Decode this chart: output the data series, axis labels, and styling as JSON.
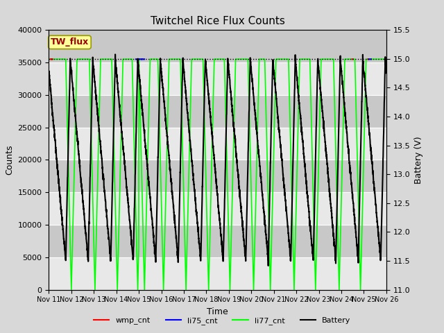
{
  "title": "Twitchel Rice Flux Counts",
  "xlabel": "Time",
  "ylabel_left": "Counts",
  "ylabel_right": "Battery (V)",
  "ylim_left": [
    0,
    40000
  ],
  "ylim_right": [
    11.0,
    15.5
  ],
  "xlim": [
    0,
    15
  ],
  "xtick_labels": [
    "Nov 11",
    "Nov 12",
    "Nov 13",
    "Nov 14",
    "Nov 15",
    "Nov 16",
    "Nov 17",
    "Nov 18",
    "Nov 19",
    "Nov 20",
    "Nov 21",
    "Nov 22",
    "Nov 23",
    "Nov 24",
    "Nov 25",
    "Nov 26"
  ],
  "fig_bg_color": "#d8d8d8",
  "plot_bg_color": "#c8c8c8",
  "white_band_color": "#e8e8e8",
  "label_box_text": "TW_flux",
  "label_box_bg": "#ffff99",
  "label_box_edge": "#999900",
  "label_box_text_color": "#990000",
  "li77_base": 35500,
  "battery_full": 15.0,
  "battery_low": 11.5,
  "dotted_line_y": 15.0,
  "figsize": [
    6.4,
    4.8
  ],
  "dpi": 100
}
